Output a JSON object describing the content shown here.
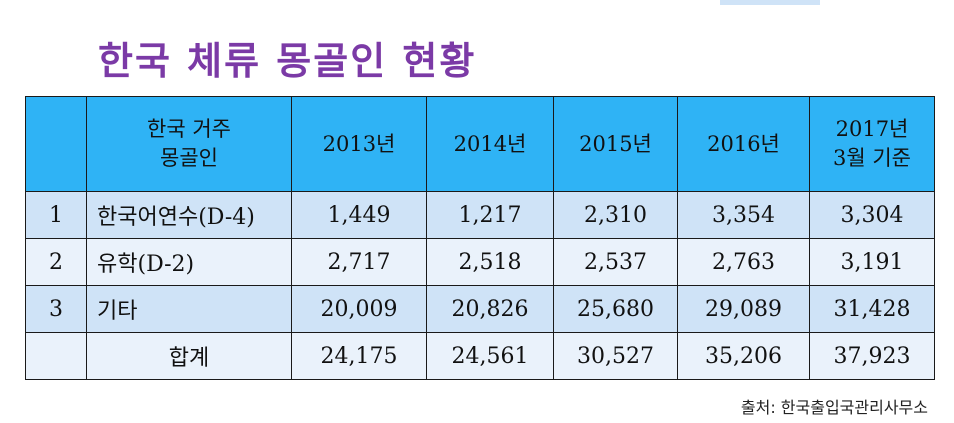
{
  "title": "한국 체류 몽골인 현황",
  "table": {
    "headers": {
      "index": "",
      "category": "한국 거주\n몽골인",
      "y2013": "2013년",
      "y2014": "2014년",
      "y2015": "2015년",
      "y2016": "2016년",
      "y2017": "2017년\n3월 기준"
    },
    "rows": [
      {
        "index": "1",
        "label": "한국어연수(D-4)",
        "y2013": "1,449",
        "y2014": "1,217",
        "y2015": "2,310",
        "y2016": "3,354",
        "y2017": "3,304"
      },
      {
        "index": "2",
        "label": "유학(D-2)",
        "y2013": "2,717",
        "y2014": "2,518",
        "y2015": "2,537",
        "y2016": "2,763",
        "y2017": "3,191"
      },
      {
        "index": "3",
        "label": "기타",
        "y2013": "20,009",
        "y2014": "20,826",
        "y2015": "25,680",
        "y2016": "29,089",
        "y2017": "31,428"
      }
    ],
    "total": {
      "index": "",
      "label": "합계",
      "y2013": "24,175",
      "y2014": "24,561",
      "y2015": "30,527",
      "y2016": "35,206",
      "y2017": "37,923"
    }
  },
  "source": "출처: 한국출입국관리사무소",
  "colors": {
    "title": "#7b3aa6",
    "header_bg": "#2fb3f5",
    "row_dark": "#cfe3f7",
    "row_light": "#eaf2fb"
  }
}
